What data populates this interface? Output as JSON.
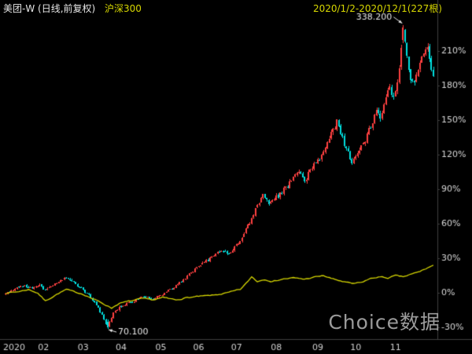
{
  "header": {
    "title_symbol": "美团-W (日线,前复权)",
    "overlay_label": "沪深300",
    "date_range": "2020/1/2-2020/12/1(227根)"
  },
  "watermark": "Choice数据",
  "colors": {
    "background": "#000000",
    "up": "#ff4040",
    "down": "#00e0e0",
    "overlay_line": "#d8d800",
    "title_text": "#e6e6e6",
    "accent_yellow": "#d8d800",
    "axis_text": "#d8d8d8",
    "x_axis_text": "#d0d0d0",
    "axis_line": "#3f3f3f",
    "watermark_color": "#9b9b9b",
    "annotation": "#e8e8e8"
  },
  "chart_data": {
    "type": "candlestick",
    "title": "美团-W (日线,前复权)",
    "overlay": "沪深300",
    "date_range_label": "2020/1/2-2020/12/1(227根)",
    "bars": 227,
    "unit": "percent change since 2020/1/2",
    "ylim": [
      -40,
      250
    ],
    "grid": false,
    "x_ticks": [
      "2020",
      "02",
      "03",
      "04",
      "05",
      "06",
      "07",
      "08",
      "09",
      "10",
      "11"
    ],
    "x_tick_indices": [
      0,
      20,
      41,
      61,
      82,
      102,
      122,
      143,
      165,
      185,
      206
    ],
    "y_ticks": [
      "210%",
      "180%",
      "150%",
      "120%",
      "90%",
      "60%",
      "30%",
      "0%",
      "-30%"
    ],
    "y_tick_values": [
      210,
      180,
      150,
      120,
      90,
      60,
      30,
      0,
      -30
    ],
    "annotations": [
      {
        "kind": "high",
        "label": "338.200",
        "index": 210,
        "pct": 232.5
      },
      {
        "kind": "low",
        "label": "70.100",
        "index": 54,
        "pct": -31.2
      }
    ],
    "series": [
      {
        "name": "美团-W",
        "type": "candlestick",
        "color_up": "#ff4040",
        "color_down": "#00e0e0",
        "anchors_pct": [
          [
            0,
            0
          ],
          [
            4,
            3
          ],
          [
            9,
            6
          ],
          [
            14,
            4
          ],
          [
            18,
            7
          ],
          [
            21,
            2
          ],
          [
            26,
            8
          ],
          [
            31,
            13
          ],
          [
            36,
            9
          ],
          [
            40,
            4
          ],
          [
            44,
            -2
          ],
          [
            48,
            -10
          ],
          [
            51,
            -20
          ],
          [
            54,
            -30.5
          ],
          [
            57,
            -17
          ],
          [
            60,
            -13
          ],
          [
            63,
            -10
          ],
          [
            68,
            -7
          ],
          [
            73,
            -3
          ],
          [
            78,
            -5
          ],
          [
            83,
            -1
          ],
          [
            88,
            4
          ],
          [
            93,
            10
          ],
          [
            98,
            18
          ],
          [
            103,
            24
          ],
          [
            108,
            30
          ],
          [
            113,
            37
          ],
          [
            118,
            34
          ],
          [
            124,
            45
          ],
          [
            128,
            58
          ],
          [
            132,
            72
          ],
          [
            136,
            85
          ],
          [
            139,
            76
          ],
          [
            143,
            83
          ],
          [
            147,
            90
          ],
          [
            151,
            97
          ],
          [
            155,
            106
          ],
          [
            158,
            98
          ],
          [
            162,
            108
          ],
          [
            168,
            122
          ],
          [
            172,
            138
          ],
          [
            175,
            148
          ],
          [
            179,
            128
          ],
          [
            183,
            114
          ],
          [
            187,
            124
          ],
          [
            190,
            132
          ],
          [
            193,
            145
          ],
          [
            196,
            158
          ],
          [
            198,
            150
          ],
          [
            200,
            163
          ],
          [
            203,
            178
          ],
          [
            205,
            170
          ],
          [
            207,
            185
          ],
          [
            208,
            198
          ],
          [
            209,
            215
          ],
          [
            210,
            230
          ],
          [
            212,
            205
          ],
          [
            214,
            185
          ],
          [
            216,
            180
          ],
          [
            218,
            196
          ],
          [
            220,
            207
          ],
          [
            222,
            213
          ],
          [
            223,
            216
          ],
          [
            225,
            196
          ],
          [
            226,
            191
          ]
        ]
      },
      {
        "name": "沪深300",
        "type": "line",
        "color": "#d8d800",
        "anchors_pct": [
          [
            0,
            0
          ],
          [
            6,
            1
          ],
          [
            12,
            3
          ],
          [
            17,
            0
          ],
          [
            21,
            -7
          ],
          [
            26,
            -2
          ],
          [
            32,
            3
          ],
          [
            36,
            1
          ],
          [
            41,
            -1
          ],
          [
            46,
            -5
          ],
          [
            50,
            -8
          ],
          [
            56,
            -13
          ],
          [
            60,
            -9
          ],
          [
            66,
            -7
          ],
          [
            72,
            -5
          ],
          [
            78,
            -6
          ],
          [
            83,
            -4
          ],
          [
            90,
            -6
          ],
          [
            96,
            -4
          ],
          [
            103,
            -3
          ],
          [
            110,
            -2
          ],
          [
            117,
            0
          ],
          [
            124,
            3
          ],
          [
            127,
            8
          ],
          [
            130,
            14
          ],
          [
            133,
            10
          ],
          [
            137,
            12
          ],
          [
            141,
            10
          ],
          [
            146,
            12
          ],
          [
            152,
            13
          ],
          [
            158,
            12
          ],
          [
            164,
            14
          ],
          [
            168,
            15
          ],
          [
            173,
            12
          ],
          [
            178,
            10
          ],
          [
            183,
            8
          ],
          [
            188,
            9
          ],
          [
            192,
            12
          ],
          [
            197,
            14
          ],
          [
            202,
            13
          ],
          [
            206,
            15
          ],
          [
            210,
            14
          ],
          [
            214,
            16
          ],
          [
            218,
            18
          ],
          [
            222,
            21
          ],
          [
            226,
            24
          ]
        ]
      }
    ]
  }
}
